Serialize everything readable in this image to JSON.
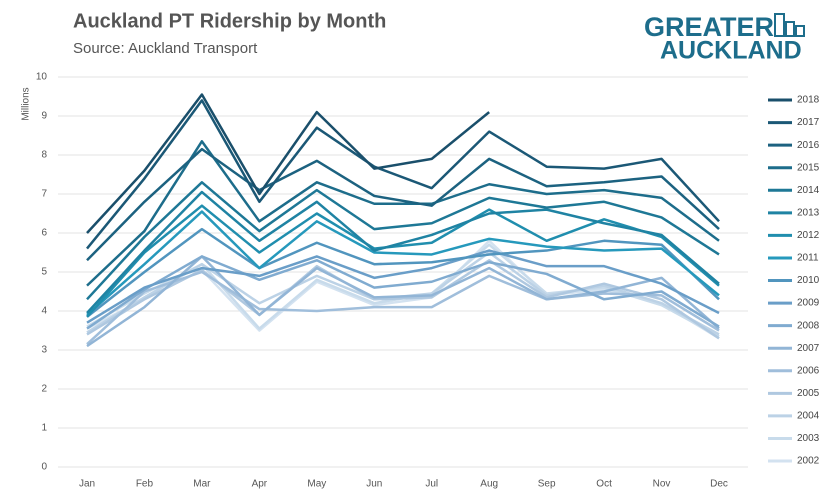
{
  "chart_data": {
    "type": "line",
    "title": "Auckland PT Ridership by Month",
    "subtitle": "Source: Auckland Transport",
    "y_label": "Millions",
    "logo": [
      "GREATER",
      "AUCKLAND"
    ],
    "categories": [
      "Jan",
      "Feb",
      "Mar",
      "Apr",
      "May",
      "Jun",
      "Jul",
      "Aug",
      "Sep",
      "Oct",
      "Nov",
      "Dec"
    ],
    "ylim": [
      0,
      10
    ],
    "yticks": [
      0,
      1,
      2,
      3,
      4,
      5,
      6,
      7,
      8,
      9,
      10
    ],
    "grid": true,
    "legend": "right",
    "series": [
      {
        "name": "2018",
        "color": "#1a4f6b",
        "values": [
          6.0,
          7.6,
          9.55,
          7.0,
          9.1,
          7.65,
          7.9,
          9.1,
          null,
          null,
          null,
          null
        ]
      },
      {
        "name": "2017",
        "color": "#1b5876",
        "values": [
          5.6,
          7.4,
          9.4,
          6.8,
          8.7,
          7.7,
          7.15,
          8.6,
          7.7,
          7.65,
          7.9,
          6.3
        ]
      },
      {
        "name": "2016",
        "color": "#1c6280",
        "values": [
          5.3,
          6.8,
          8.15,
          7.1,
          7.85,
          6.95,
          6.7,
          7.9,
          7.2,
          7.3,
          7.45,
          6.1
        ]
      },
      {
        "name": "2015",
        "color": "#1d6d8b",
        "values": [
          4.65,
          6.05,
          8.35,
          6.3,
          7.3,
          6.75,
          6.75,
          7.25,
          7.0,
          7.1,
          6.9,
          5.8
        ]
      },
      {
        "name": "2014",
        "color": "#1e7896",
        "values": [
          4.3,
          5.9,
          7.3,
          6.05,
          7.1,
          6.1,
          6.25,
          6.9,
          6.65,
          6.8,
          6.4,
          5.45
        ]
      },
      {
        "name": "2013",
        "color": "#1f83a3",
        "values": [
          3.95,
          5.55,
          7.05,
          5.8,
          6.8,
          5.55,
          5.95,
          6.5,
          6.6,
          6.25,
          5.95,
          4.7
        ]
      },
      {
        "name": "2012",
        "color": "#208eae",
        "values": [
          3.85,
          5.5,
          6.7,
          5.5,
          6.5,
          5.6,
          5.75,
          6.6,
          5.8,
          6.35,
          5.9,
          4.65
        ]
      },
      {
        "name": "2011",
        "color": "#2699bc",
        "values": [
          3.9,
          5.2,
          6.55,
          5.1,
          6.3,
          5.5,
          5.45,
          5.85,
          5.65,
          5.55,
          5.6,
          4.4
        ]
      },
      {
        "name": "2010",
        "color": "#5195be",
        "values": [
          3.85,
          5.0,
          6.1,
          5.1,
          5.75,
          5.2,
          5.25,
          5.45,
          5.55,
          5.8,
          5.7,
          4.3
        ]
      },
      {
        "name": "2009",
        "color": "#6a9ec8",
        "values": [
          3.7,
          4.6,
          5.1,
          4.9,
          5.4,
          4.85,
          5.1,
          5.55,
          5.15,
          5.15,
          4.7,
          3.95
        ]
      },
      {
        "name": "2008",
        "color": "#80abd0",
        "values": [
          3.55,
          4.55,
          5.4,
          4.8,
          5.3,
          4.6,
          4.75,
          5.25,
          4.95,
          4.3,
          4.5,
          3.6
        ]
      },
      {
        "name": "2007",
        "color": "#92b5d6",
        "values": [
          3.1,
          4.1,
          5.4,
          3.9,
          5.1,
          4.35,
          4.4,
          5.1,
          4.3,
          4.5,
          4.85,
          3.55
        ]
      },
      {
        "name": "2006",
        "color": "#a0bedb",
        "values": [
          3.15,
          4.5,
          5.0,
          4.05,
          4.0,
          4.1,
          4.1,
          4.9,
          4.3,
          4.45,
          4.4,
          3.5
        ]
      },
      {
        "name": "2005",
        "color": "#afc8e0",
        "values": [
          3.4,
          4.3,
          5.05,
          3.9,
          5.15,
          4.3,
          4.35,
          5.3,
          4.35,
          4.7,
          4.3,
          3.3
        ]
      },
      {
        "name": "2004",
        "color": "#bcd2e6",
        "values": [
          3.45,
          4.35,
          5.2,
          4.2,
          4.9,
          4.3,
          4.45,
          5.5,
          4.4,
          4.65,
          4.2,
          3.4
        ]
      },
      {
        "name": "2003",
        "color": "#c8dbeb",
        "values": [
          3.6,
          4.45,
          5.2,
          3.55,
          4.8,
          4.2,
          4.45,
          5.7,
          4.45,
          4.6,
          4.15,
          3.35
        ]
      },
      {
        "name": "2002",
        "color": "#d3e2f0",
        "values": [
          3.55,
          4.3,
          5.05,
          3.5,
          4.75,
          4.15,
          4.35,
          5.8,
          4.4,
          4.55,
          4.2,
          3.3
        ]
      }
    ]
  }
}
